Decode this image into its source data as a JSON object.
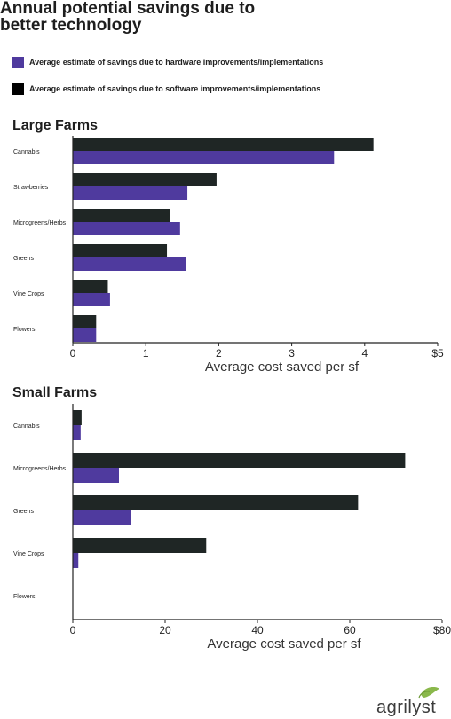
{
  "title": "Annual potential savings due to better technology",
  "colors": {
    "hardware": "#4f3a9e",
    "software": "#1f2625",
    "axis": "#222222"
  },
  "legend": [
    {
      "label": "Average estimate of savings due to hardware improvements/implementations",
      "color": "#4f3a9e"
    },
    {
      "label": "Average estimate of savings due to software improvements/implementations",
      "color": "#000000"
    }
  ],
  "logo": {
    "text": "agrilyst",
    "icon": "leaf-icon"
  },
  "chart_data": [
    {
      "type": "bar",
      "orientation": "horizontal",
      "title": "Large Farms",
      "xlabel": "Average cost saved per sf",
      "xlim": [
        0,
        5
      ],
      "xticks": [
        0,
        1,
        2,
        3,
        4,
        5
      ],
      "xtick_labels": [
        "0",
        "1",
        "2",
        "3",
        "4",
        "$5"
      ],
      "categories": [
        "Cannabis",
        "Strawberries",
        "Microgreens/Herbs",
        "Greens",
        "Vine Crops",
        "Flowers"
      ],
      "series": [
        {
          "name": "Average estimate of savings due to software improvements/implementations",
          "values": [
            4.12,
            1.97,
            1.33,
            1.29,
            0.48,
            0.32
          ]
        },
        {
          "name": "Average estimate of savings due to hardware improvements/implementations",
          "values": [
            3.58,
            1.57,
            1.47,
            1.55,
            0.51,
            0.32
          ]
        }
      ]
    },
    {
      "type": "bar",
      "orientation": "horizontal",
      "title": "Small Farms",
      "xlabel": "Average cost saved per sf",
      "xlim": [
        0,
        80
      ],
      "xticks": [
        0,
        20,
        40,
        60,
        80
      ],
      "xtick_labels": [
        "0",
        "20",
        "40",
        "60",
        "$80"
      ],
      "categories": [
        "Cannabis",
        "Microgreens/Herbs",
        "Greens",
        "Vine Crops",
        "Flowers"
      ],
      "series": [
        {
          "name": "Average estimate of savings due to software improvements/implementations",
          "values": [
            1.9,
            72,
            61.8,
            28.9,
            0
          ]
        },
        {
          "name": "Average estimate of savings due to hardware improvements/implementations",
          "values": [
            1.7,
            10,
            12.6,
            1.2,
            0
          ]
        }
      ]
    }
  ]
}
